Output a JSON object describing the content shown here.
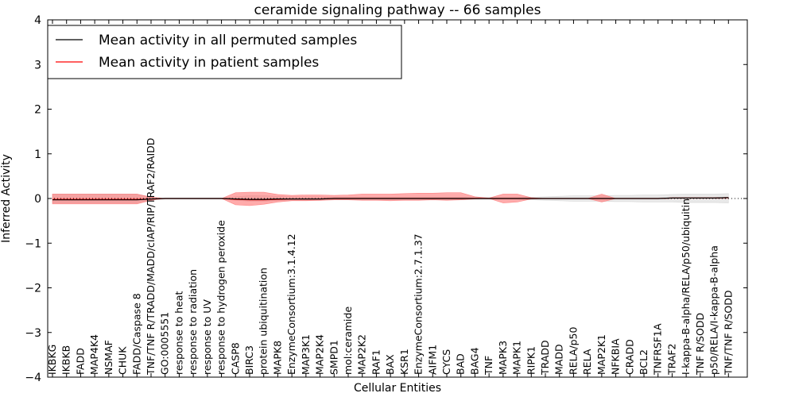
{
  "chart_data": {
    "type": "line",
    "title": "ceramide signaling pathway -- 66 samples",
    "xlabel": "Cellular Entities",
    "ylabel": "Inferred Activity",
    "ylim": [
      -4,
      4
    ],
    "yticks": [
      "−4",
      "−3",
      "−2",
      "−1",
      "0",
      "1",
      "2",
      "3",
      "4"
    ],
    "legend_position": "top-left",
    "categories": [
      "IKBKG",
      "IKBKB",
      "FADD",
      "MAP4K4",
      "NSMAF",
      "CHUK",
      "FADD/Caspase 8",
      "TNF/TNF R/TRADD/MADD/cIAP/RIP/TRAF2/RAIDD",
      "GO:0005551",
      "response to heat",
      "response to radiation",
      "response to UV",
      "response to hydrogen peroxide",
      "CASP8",
      "BIRC3",
      "protein ubiquitination",
      "MAPK8",
      "EnzymeConsortium:3.1.4.12",
      "MAP3K1",
      "MAP2K4",
      "SMPD1",
      "mol:ceramide",
      "MAP2K2",
      "RAF1",
      "BAX",
      "KSR1",
      "EnzymeConsortium:2.7.1.37",
      "AIFM1",
      "CYCS",
      "BAD",
      "BAG4",
      "TNF",
      "MAPK3",
      "MAPK1",
      "RIPK1",
      "TRADD",
      "MADD",
      "RELA/p50",
      "RELA",
      "MAP2K1",
      "NFKBIA",
      "CRADD",
      "BCL2",
      "TNFRSF1A",
      "TRAF2",
      "I-kappa-B-alpha/RELA/p50/ubiquitin",
      "TNF R/SODD",
      "p50/RELA/I-kappa-B-alpha",
      "TNF/TNF R/SODD"
    ],
    "series": [
      {
        "name": "Mean activity in all permuted samples",
        "color": "#000000",
        "values": [
          -0.03,
          -0.03,
          -0.03,
          -0.03,
          -0.03,
          -0.03,
          -0.03,
          -0.01,
          0.0,
          0.0,
          0.0,
          0.0,
          0.0,
          -0.01,
          -0.02,
          -0.02,
          -0.01,
          -0.01,
          -0.01,
          -0.01,
          0.0,
          0.0,
          0.0,
          0.0,
          0.0,
          0.0,
          0.0,
          0.0,
          0.0,
          0.0,
          0.0,
          0.0,
          0.0,
          0.0,
          0.0,
          0.0,
          0.0,
          0.0,
          0.0,
          0.0,
          0.0,
          0.0,
          0.0,
          0.0,
          0.01,
          0.01,
          0.01,
          0.01,
          0.02
        ],
        "band": [
          -0.1,
          -0.1,
          -0.1,
          -0.1,
          -0.1,
          -0.1,
          -0.1,
          -0.03,
          -0.01,
          -0.01,
          -0.01,
          -0.01,
          -0.01,
          -0.04,
          -0.06,
          -0.06,
          -0.05,
          -0.04,
          -0.04,
          -0.04,
          -0.03,
          -0.03,
          -0.03,
          -0.03,
          -0.03,
          -0.03,
          -0.03,
          -0.03,
          -0.03,
          -0.03,
          -0.02,
          -0.02,
          -0.02,
          -0.02,
          -0.03,
          -0.04,
          -0.05,
          -0.06,
          -0.06,
          -0.06,
          -0.07,
          -0.07,
          -0.08,
          -0.08,
          -0.08,
          -0.09,
          -0.09,
          -0.09,
          -0.1
        ],
        "band_upper": [
          0.1,
          0.1,
          0.1,
          0.1,
          0.1,
          0.1,
          0.1,
          0.03,
          0.01,
          0.01,
          0.01,
          0.01,
          0.01,
          0.04,
          0.06,
          0.06,
          0.05,
          0.04,
          0.04,
          0.04,
          0.03,
          0.03,
          0.03,
          0.03,
          0.03,
          0.03,
          0.03,
          0.03,
          0.03,
          0.03,
          0.02,
          0.02,
          0.02,
          0.02,
          0.03,
          0.04,
          0.05,
          0.06,
          0.06,
          0.06,
          0.07,
          0.07,
          0.08,
          0.08,
          0.09,
          0.1,
          0.1,
          0.1,
          0.11
        ],
        "band_color": "#cccccc"
      },
      {
        "name": "Mean activity in patient samples",
        "color": "#ff0000",
        "values": [
          -0.02,
          -0.02,
          -0.02,
          -0.02,
          -0.02,
          -0.02,
          -0.02,
          -0.01,
          0.0,
          0.0,
          0.0,
          0.0,
          0.0,
          -0.02,
          -0.03,
          -0.03,
          -0.02,
          -0.01,
          -0.01,
          -0.01,
          0.0,
          0.0,
          0.0,
          0.0,
          0.0,
          0.0,
          0.0,
          0.0,
          0.0,
          0.0,
          0.0,
          0.0,
          0.0,
          0.0,
          0.0,
          0.0,
          0.0,
          0.0,
          0.0,
          0.0,
          0.0,
          0.0,
          0.0,
          0.0,
          0.01,
          0.01,
          0.01,
          0.01,
          0.02
        ],
        "band": [
          -0.12,
          -0.12,
          -0.12,
          -0.12,
          -0.12,
          -0.12,
          -0.12,
          -0.04,
          0.0,
          0.0,
          0.0,
          0.0,
          0.0,
          -0.14,
          -0.16,
          -0.13,
          -0.08,
          -0.05,
          -0.05,
          -0.04,
          -0.03,
          -0.03,
          -0.04,
          -0.04,
          -0.05,
          -0.04,
          -0.04,
          -0.03,
          -0.04,
          -0.03,
          -0.01,
          0.0,
          -0.1,
          -0.08,
          -0.01,
          0.0,
          0.0,
          0.0,
          0.0,
          -0.08,
          0.0,
          0.0,
          0.0,
          0.0,
          0.0,
          0.0,
          0.0,
          0.0,
          0.0
        ],
        "band_upper": [
          0.1,
          0.1,
          0.1,
          0.1,
          0.1,
          0.1,
          0.1,
          0.03,
          0.0,
          0.0,
          0.0,
          0.0,
          0.0,
          0.13,
          0.14,
          0.14,
          0.09,
          0.07,
          0.08,
          0.08,
          0.07,
          0.08,
          0.1,
          0.1,
          0.1,
          0.11,
          0.12,
          0.12,
          0.13,
          0.13,
          0.04,
          0.01,
          0.1,
          0.1,
          0.02,
          0.0,
          0.0,
          0.0,
          0.0,
          0.1,
          0.0,
          0.0,
          0.0,
          0.0,
          0.0,
          0.0,
          0.0,
          0.0,
          0.0
        ],
        "band_color": "#ff6666"
      }
    ]
  }
}
